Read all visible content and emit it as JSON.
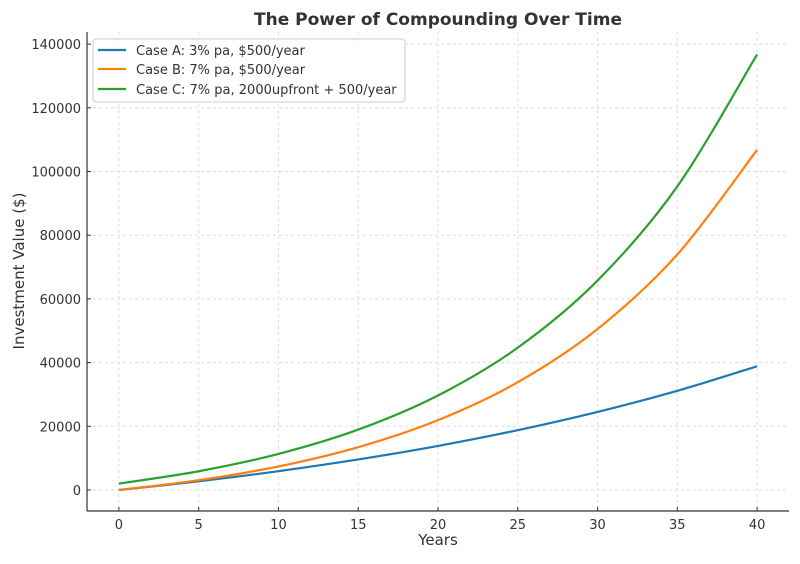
{
  "chart_data": {
    "type": "line",
    "title": "The Power of Compounding Over Time",
    "xlabel": "Years",
    "ylabel": "Investment Value ($)",
    "xlim": [
      -2,
      42
    ],
    "ylim": [
      -6600,
      143800
    ],
    "xticks": [
      0,
      5,
      10,
      15,
      20,
      25,
      30,
      35,
      40
    ],
    "yticks": [
      0,
      20000,
      40000,
      60000,
      80000,
      100000,
      120000,
      140000
    ],
    "grid": true,
    "legend_position": "top-left",
    "x": [
      0,
      5,
      10,
      15,
      20,
      25,
      30,
      35,
      40
    ],
    "series": [
      {
        "name": "Case A: 3% pa, $500/year",
        "color": "#1f77b4",
        "values": [
          0,
          2734,
          5904,
          9578,
          13838,
          18777,
          24501,
          31138,
          38832
        ]
      },
      {
        "name": "Case B: 7% pa, $500/year",
        "color": "#ff7f0e",
        "values": [
          0,
          3077,
          7392,
          13444,
          21932,
          33838,
          50536,
          73957,
          106804
        ]
      },
      {
        "name": "Case C: 7% pa, 2000upfront + 500/year",
        "color": "#2ca02c",
        "values": [
          2000,
          5882,
          11326,
          18962,
          29671,
          44693,
          65761,
          95310,
          136753
        ]
      }
    ]
  }
}
